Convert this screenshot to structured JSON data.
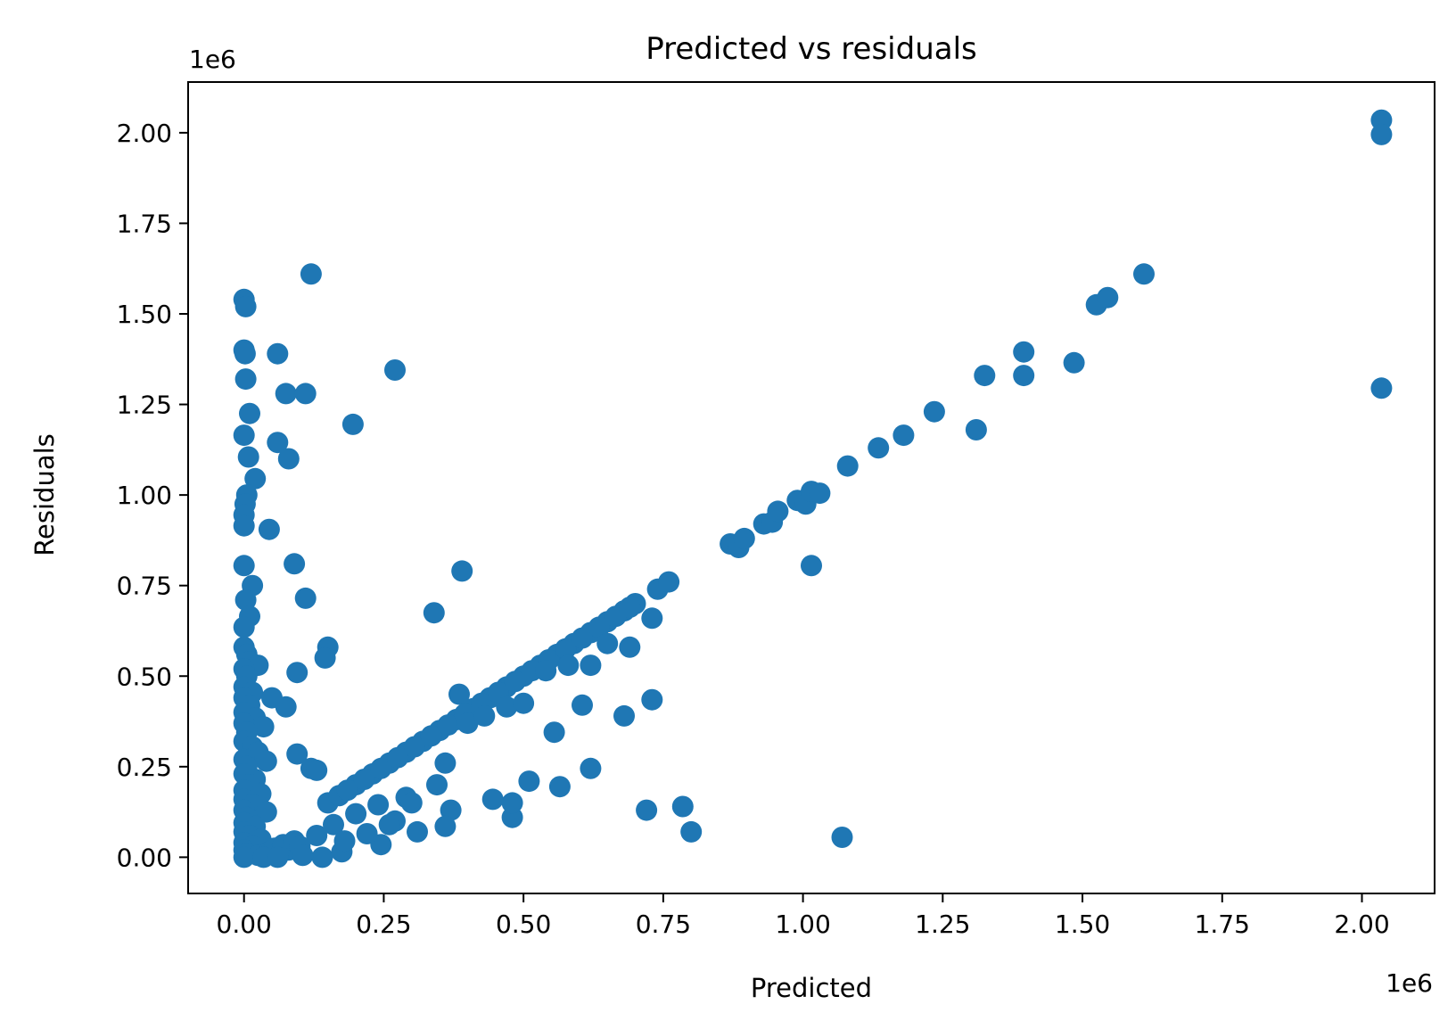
{
  "chart_data": {
    "type": "scatter",
    "title": "Predicted vs residuals",
    "xlabel": "Predicted",
    "ylabel": "Residuals",
    "x_offset_text": "1e6",
    "y_offset_text": "1e6",
    "xlim": [
      -100000,
      2130000
    ],
    "ylim": [
      -100000,
      2140000
    ],
    "x_ticks": [
      0,
      250000,
      500000,
      750000,
      1000000,
      1250000,
      1500000,
      1750000,
      2000000
    ],
    "x_tick_labels": [
      "0.00",
      "0.25",
      "0.50",
      "0.75",
      "1.00",
      "1.25",
      "1.50",
      "1.75",
      "2.00"
    ],
    "y_ticks": [
      0,
      250000,
      500000,
      750000,
      1000000,
      1250000,
      1500000,
      1750000,
      2000000
    ],
    "y_tick_labels": [
      "0.00",
      "0.25",
      "0.50",
      "0.75",
      "1.00",
      "1.25",
      "1.50",
      "1.75",
      "2.00"
    ],
    "grid": false,
    "legend": "none",
    "marker_color": "#1f77b4",
    "series": [
      {
        "points": [
          [
            0,
            1540000
          ],
          [
            3000,
            1520000
          ],
          [
            0,
            1400000
          ],
          [
            2000,
            1390000
          ],
          [
            3000,
            1320000
          ],
          [
            10000,
            1225000
          ],
          [
            0,
            1165000
          ],
          [
            8000,
            1105000
          ],
          [
            20000,
            1045000
          ],
          [
            5000,
            1000000
          ],
          [
            2000,
            975000
          ],
          [
            0,
            945000
          ],
          [
            0,
            915000
          ],
          [
            45000,
            905000
          ],
          [
            0,
            805000
          ],
          [
            15000,
            750000
          ],
          [
            3000,
            710000
          ],
          [
            10000,
            665000
          ],
          [
            0,
            635000
          ],
          [
            0,
            580000
          ],
          [
            5000,
            560000
          ],
          [
            10000,
            540000
          ],
          [
            25000,
            530000
          ],
          [
            0,
            520000
          ],
          [
            5000,
            500000
          ],
          [
            0,
            470000
          ],
          [
            15000,
            455000
          ],
          [
            0,
            440000
          ],
          [
            10000,
            420000
          ],
          [
            0,
            400000
          ],
          [
            20000,
            385000
          ],
          [
            0,
            370000
          ],
          [
            35000,
            360000
          ],
          [
            5000,
            345000
          ],
          [
            0,
            320000
          ],
          [
            15000,
            305000
          ],
          [
            25000,
            290000
          ],
          [
            0,
            270000
          ],
          [
            40000,
            265000
          ],
          [
            5000,
            250000
          ],
          [
            0,
            230000
          ],
          [
            20000,
            215000
          ],
          [
            10000,
            200000
          ],
          [
            0,
            185000
          ],
          [
            30000,
            175000
          ],
          [
            0,
            160000
          ],
          [
            15000,
            145000
          ],
          [
            0,
            130000
          ],
          [
            40000,
            125000
          ],
          [
            5000,
            110000
          ],
          [
            0,
            95000
          ],
          [
            20000,
            85000
          ],
          [
            0,
            70000
          ],
          [
            10000,
            60000
          ],
          [
            30000,
            50000
          ],
          [
            0,
            40000
          ],
          [
            15000,
            30000
          ],
          [
            0,
            20000
          ],
          [
            5000,
            10000
          ],
          [
            25000,
            5000
          ],
          [
            0,
            0
          ],
          [
            45000,
            15000
          ],
          [
            55000,
            25000
          ],
          [
            60000,
            10000
          ],
          [
            70000,
            35000
          ],
          [
            80000,
            20000
          ],
          [
            90000,
            45000
          ],
          [
            100000,
            30000
          ],
          [
            35000,
            0
          ],
          [
            60000,
            0
          ],
          [
            120000,
            1610000
          ],
          [
            60000,
            1390000
          ],
          [
            75000,
            1280000
          ],
          [
            110000,
            1280000
          ],
          [
            270000,
            1345000
          ],
          [
            195000,
            1195000
          ],
          [
            60000,
            1145000
          ],
          [
            80000,
            1100000
          ],
          [
            90000,
            810000
          ],
          [
            110000,
            715000
          ],
          [
            390000,
            790000
          ],
          [
            340000,
            675000
          ],
          [
            150000,
            580000
          ],
          [
            145000,
            550000
          ],
          [
            95000,
            510000
          ],
          [
            50000,
            440000
          ],
          [
            75000,
            415000
          ],
          [
            95000,
            285000
          ],
          [
            120000,
            245000
          ],
          [
            130000,
            240000
          ],
          [
            385000,
            450000
          ],
          [
            360000,
            260000
          ],
          [
            345000,
            200000
          ],
          [
            370000,
            130000
          ],
          [
            360000,
            85000
          ],
          [
            310000,
            70000
          ],
          [
            245000,
            35000
          ],
          [
            175000,
            15000
          ],
          [
            140000,
            0
          ],
          [
            105000,
            5000
          ],
          [
            290000,
            165000
          ],
          [
            300000,
            150000
          ],
          [
            270000,
            100000
          ],
          [
            200000,
            120000
          ],
          [
            160000,
            90000
          ],
          [
            130000,
            60000
          ],
          [
            220000,
            65000
          ],
          [
            180000,
            45000
          ],
          [
            260000,
            90000
          ],
          [
            240000,
            145000
          ],
          [
            150000,
            150000
          ],
          [
            170000,
            170000
          ],
          [
            200000,
            200000
          ],
          [
            230000,
            230000
          ],
          [
            260000,
            260000
          ],
          [
            290000,
            290000
          ],
          [
            320000,
            320000
          ],
          [
            350000,
            350000
          ],
          [
            380000,
            380000
          ],
          [
            410000,
            410000
          ],
          [
            440000,
            440000
          ],
          [
            470000,
            470000
          ],
          [
            500000,
            500000
          ],
          [
            530000,
            530000
          ],
          [
            560000,
            560000
          ],
          [
            590000,
            590000
          ],
          [
            620000,
            620000
          ],
          [
            650000,
            650000
          ],
          [
            680000,
            680000
          ],
          [
            700000,
            700000
          ],
          [
            740000,
            740000
          ],
          [
            760000,
            760000
          ],
          [
            185000,
            185000
          ],
          [
            215000,
            215000
          ],
          [
            245000,
            245000
          ],
          [
            275000,
            275000
          ],
          [
            305000,
            305000
          ],
          [
            335000,
            335000
          ],
          [
            365000,
            365000
          ],
          [
            395000,
            395000
          ],
          [
            425000,
            425000
          ],
          [
            455000,
            455000
          ],
          [
            485000,
            485000
          ],
          [
            515000,
            515000
          ],
          [
            545000,
            545000
          ],
          [
            575000,
            575000
          ],
          [
            605000,
            605000
          ],
          [
            635000,
            635000
          ],
          [
            665000,
            665000
          ],
          [
            690000,
            690000
          ],
          [
            400000,
            370000
          ],
          [
            430000,
            390000
          ],
          [
            470000,
            415000
          ],
          [
            500000,
            425000
          ],
          [
            540000,
            515000
          ],
          [
            580000,
            530000
          ],
          [
            620000,
            530000
          ],
          [
            650000,
            590000
          ],
          [
            690000,
            580000
          ],
          [
            730000,
            660000
          ],
          [
            480000,
            110000
          ],
          [
            480000,
            150000
          ],
          [
            445000,
            160000
          ],
          [
            510000,
            210000
          ],
          [
            565000,
            195000
          ],
          [
            555000,
            345000
          ],
          [
            605000,
            420000
          ],
          [
            620000,
            245000
          ],
          [
            680000,
            390000
          ],
          [
            730000,
            435000
          ],
          [
            720000,
            130000
          ],
          [
            785000,
            140000
          ],
          [
            800000,
            70000
          ],
          [
            1070000,
            55000
          ],
          [
            1015000,
            805000
          ],
          [
            870000,
            865000
          ],
          [
            885000,
            855000
          ],
          [
            895000,
            880000
          ],
          [
            930000,
            920000
          ],
          [
            945000,
            925000
          ],
          [
            955000,
            955000
          ],
          [
            990000,
            985000
          ],
          [
            1005000,
            975000
          ],
          [
            1015000,
            1010000
          ],
          [
            1030000,
            1005000
          ],
          [
            1080000,
            1080000
          ],
          [
            1135000,
            1130000
          ],
          [
            1180000,
            1165000
          ],
          [
            1235000,
            1230000
          ],
          [
            1310000,
            1180000
          ],
          [
            1325000,
            1330000
          ],
          [
            1395000,
            1395000
          ],
          [
            1395000,
            1330000
          ],
          [
            1485000,
            1365000
          ],
          [
            1525000,
            1525000
          ],
          [
            1545000,
            1545000
          ],
          [
            1610000,
            1610000
          ],
          [
            2035000,
            2035000
          ],
          [
            2035000,
            1995000
          ],
          [
            2035000,
            1295000
          ]
        ]
      }
    ]
  }
}
